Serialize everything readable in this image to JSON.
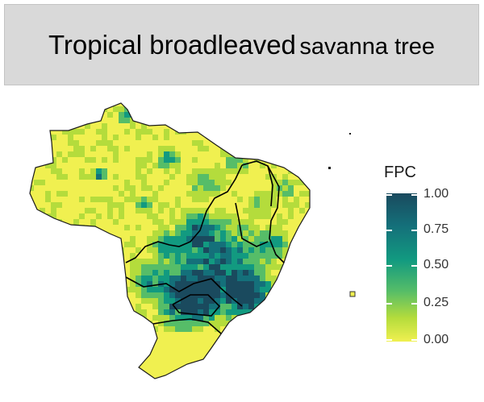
{
  "title": {
    "main": "Tropical broadleaved",
    "sub": "savanna tree"
  },
  "legend": {
    "title": "FPC",
    "ticks": [
      "1.00",
      "0.75",
      "0.50",
      "0.25",
      "0.00"
    ],
    "colors": {
      "high": "#1a4a5e",
      "mid_high": "#14707a",
      "mid": "#129a80",
      "mid_low": "#56bd68",
      "low_mid": "#b4dc3c",
      "low": "#f0f050"
    }
  },
  "map": {
    "region": "Brazil",
    "variable": "FPC",
    "value_range": [
      0,
      1
    ]
  }
}
